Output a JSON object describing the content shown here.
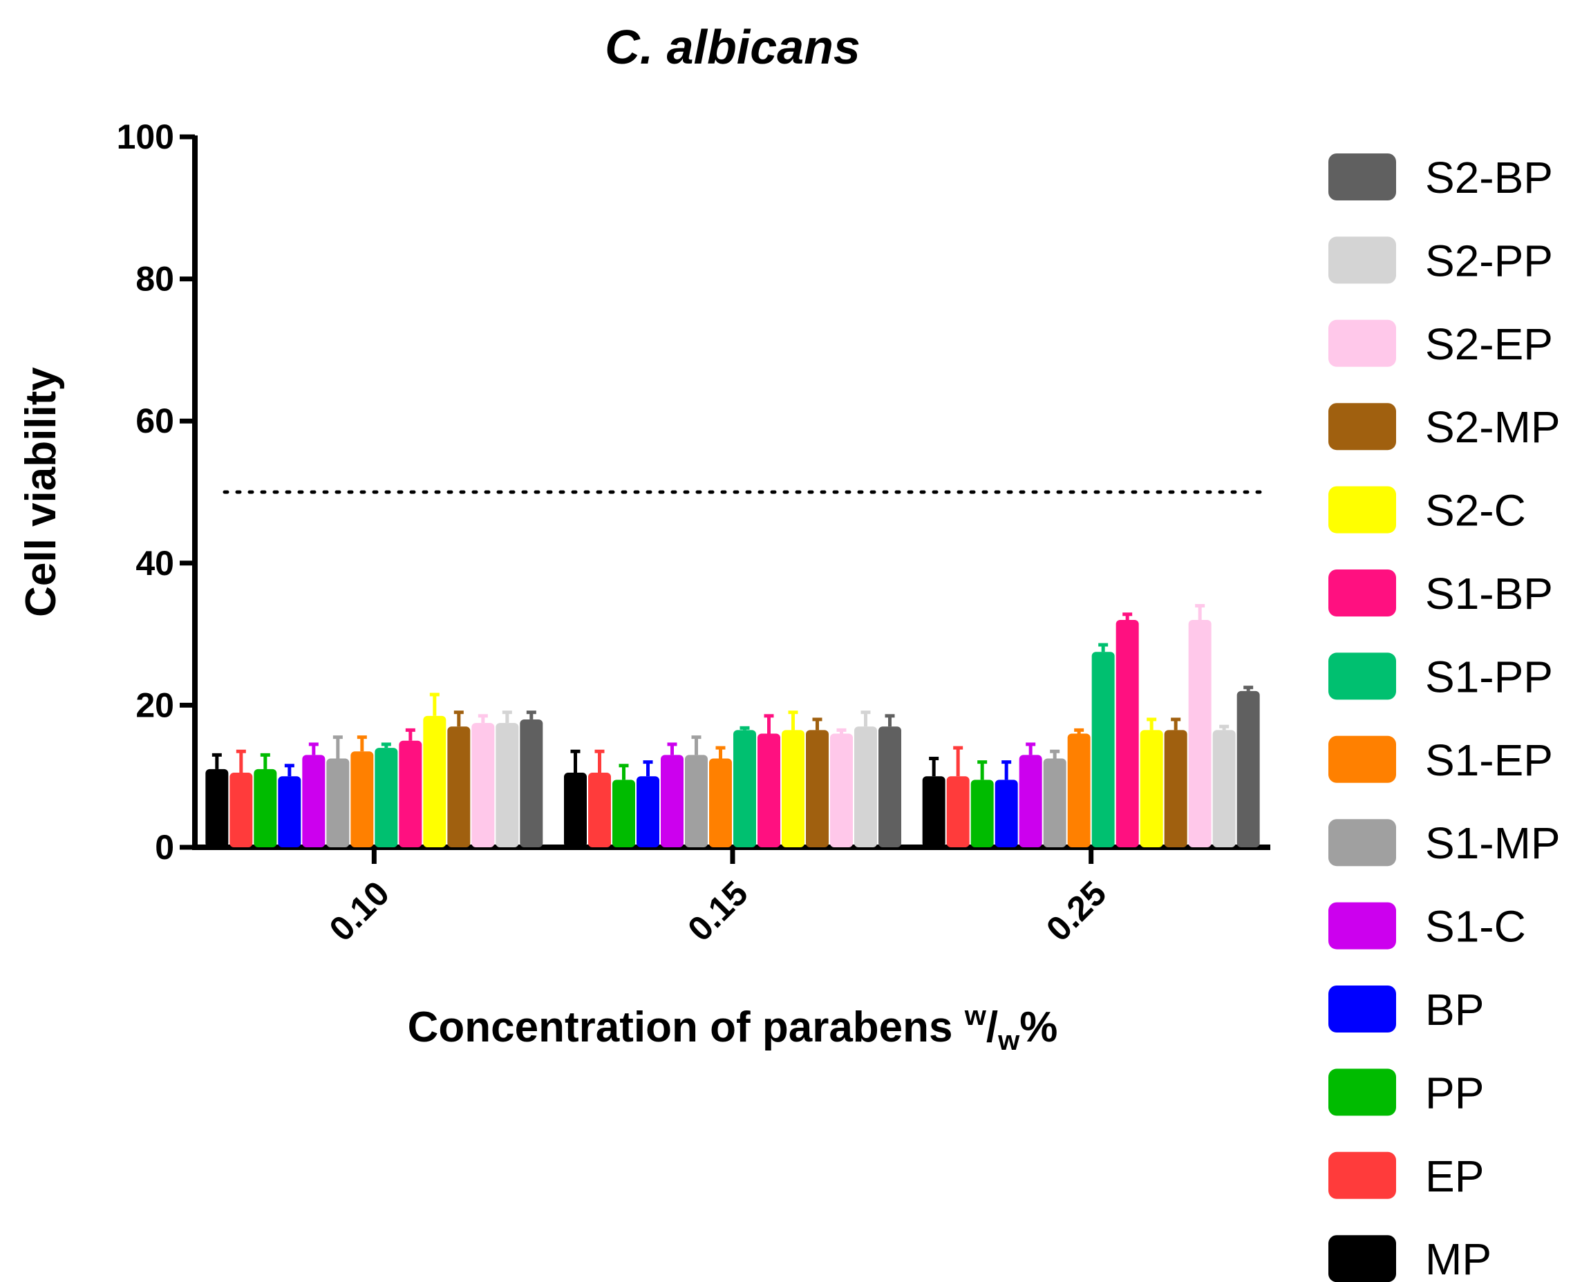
{
  "chart_data": {
    "type": "bar",
    "title": "C. albicans",
    "ylabel": "Cell viability",
    "xlabel": {
      "main": "Concentration of parabens ",
      "sup": "w",
      "slash": "/",
      "sub": "w",
      "tail": "%"
    },
    "ylim": [
      0,
      100
    ],
    "yticks": [
      0,
      20,
      40,
      60,
      80,
      100
    ],
    "ytick_labels": [
      "0",
      "20",
      "40",
      "60",
      "80",
      "100"
    ],
    "reference_line": 50,
    "categories": [
      "0.10",
      "0.15",
      "0.25"
    ],
    "series": [
      {
        "name": "MP",
        "color": "#000000",
        "values": [
          11,
          10.5,
          10
        ],
        "errors": [
          2,
          3,
          2.5
        ]
      },
      {
        "name": "EP",
        "color": "#ff3b3b",
        "values": [
          10.5,
          10.5,
          10
        ],
        "errors": [
          3,
          3,
          4
        ]
      },
      {
        "name": "PP",
        "color": "#00bb00",
        "values": [
          11,
          9.5,
          9.5
        ],
        "errors": [
          2,
          2,
          2.5
        ]
      },
      {
        "name": "BP",
        "color": "#0000ff",
        "values": [
          10,
          10,
          9.5
        ],
        "errors": [
          1.5,
          2,
          2.5
        ]
      },
      {
        "name": "S1-C",
        "color": "#cc00ee",
        "values": [
          13,
          13,
          13
        ],
        "errors": [
          1.5,
          1.5,
          1.5
        ]
      },
      {
        "name": "S1-MP",
        "color": "#a0a0a0",
        "values": [
          12.5,
          13,
          12.5
        ],
        "errors": [
          3,
          2.5,
          1
        ]
      },
      {
        "name": "S1-EP",
        "color": "#ff8000",
        "values": [
          13.5,
          12.5,
          16
        ],
        "errors": [
          2,
          1.5,
          0.5
        ]
      },
      {
        "name": "S1-PP",
        "color": "#00c070",
        "values": [
          14,
          16.5,
          27.5
        ],
        "errors": [
          0.5,
          0.3,
          1
        ]
      },
      {
        "name": "S1-BP",
        "color": "#ff1080",
        "values": [
          15,
          16,
          32
        ],
        "errors": [
          1.5,
          2.5,
          0.8
        ]
      },
      {
        "name": "S2-C",
        "color": "#ffff00",
        "values": [
          18.5,
          16.5,
          16.5
        ],
        "errors": [
          3,
          2.5,
          1.5
        ]
      },
      {
        "name": "S2-MP",
        "color": "#a0600f",
        "values": [
          17,
          16.5,
          16.5
        ],
        "errors": [
          2,
          1.5,
          1.5
        ]
      },
      {
        "name": "S2-EP",
        "color": "#ffc8ea",
        "values": [
          17.5,
          16,
          32
        ],
        "errors": [
          1,
          0.5,
          2
        ]
      },
      {
        "name": "S2-PP",
        "color": "#d4d4d4",
        "values": [
          17.5,
          17,
          16.5
        ],
        "errors": [
          1.5,
          2,
          0.5
        ]
      },
      {
        "name": "S2-BP",
        "color": "#606060",
        "values": [
          18,
          17,
          22
        ],
        "errors": [
          1,
          1.5,
          0.5
        ]
      }
    ],
    "legend_order": [
      "S2-BP",
      "S2-PP",
      "S2-EP",
      "S2-MP",
      "S2-C",
      "S1-BP",
      "S1-PP",
      "S1-EP",
      "S1-MP",
      "S1-C",
      "BP",
      "PP",
      "EP",
      "MP"
    ],
    "legend_position": "right",
    "grid": false
  }
}
